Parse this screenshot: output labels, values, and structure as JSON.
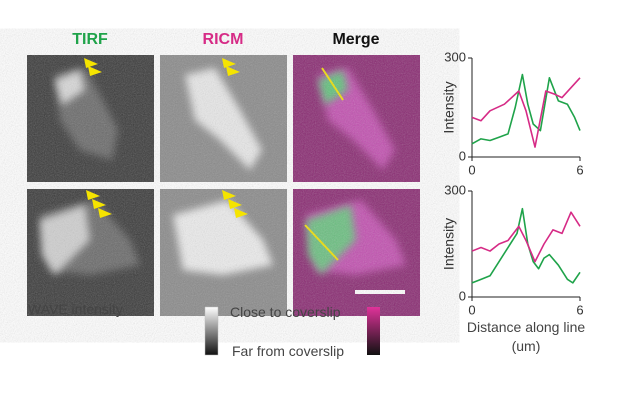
{
  "panel_titles": [
    {
      "text": "TIRF",
      "color": "#1fa34a"
    },
    {
      "text": "RICM",
      "color": "#d62b86"
    },
    {
      "text": "Merge",
      "color": "#111111"
    }
  ],
  "captions": {
    "tirf": "WAVE intensity",
    "close": "Close to coverslip",
    "far": "Far from coverslip"
  },
  "chart_data": [
    {
      "type": "line",
      "ylabel": "Intensity",
      "xlim": [
        0,
        6
      ],
      "xticks": [
        0,
        6
      ],
      "ylim": [
        0,
        300
      ],
      "yticks": [
        0,
        300
      ],
      "series": [
        {
          "color": "#1fa34a",
          "x": [
            0,
            0.5,
            1,
            1.5,
            2,
            2.4,
            2.8,
            3.1,
            3.4,
            3.8,
            4.3,
            4.8,
            5.3,
            5.7,
            6
          ],
          "values": [
            40,
            55,
            50,
            60,
            70,
            150,
            250,
            160,
            100,
            80,
            240,
            170,
            160,
            120,
            80
          ]
        },
        {
          "color": "#d62b86",
          "x": [
            0,
            0.5,
            1,
            1.8,
            2.6,
            3,
            3.5,
            4.1,
            4.6,
            5,
            5.5,
            6
          ],
          "values": [
            120,
            110,
            140,
            160,
            200,
            140,
            30,
            200,
            190,
            180,
            210,
            240
          ]
        }
      ]
    },
    {
      "type": "line",
      "ylabel": "Intensity",
      "xlabel": "Distance along line (um)",
      "xlim": [
        0,
        6
      ],
      "xticks": [
        0,
        6
      ],
      "ylim": [
        0,
        300
      ],
      "yticks": [
        0,
        300
      ],
      "series": [
        {
          "color": "#1fa34a",
          "x": [
            0,
            0.5,
            1,
            1.5,
            2,
            2.5,
            2.8,
            3.1,
            3.4,
            3.7,
            4,
            4.3,
            4.8,
            5.3,
            5.6,
            6
          ],
          "values": [
            40,
            50,
            60,
            100,
            140,
            180,
            250,
            150,
            100,
            80,
            110,
            120,
            90,
            50,
            40,
            70
          ]
        },
        {
          "color": "#d62b86",
          "x": [
            0,
            0.5,
            1,
            1.5,
            2,
            2.6,
            3,
            3.5,
            4,
            4.5,
            5,
            5.5,
            6
          ],
          "values": [
            130,
            140,
            130,
            150,
            160,
            200,
            160,
            100,
            150,
            190,
            180,
            240,
            200
          ]
        }
      ]
    }
  ]
}
